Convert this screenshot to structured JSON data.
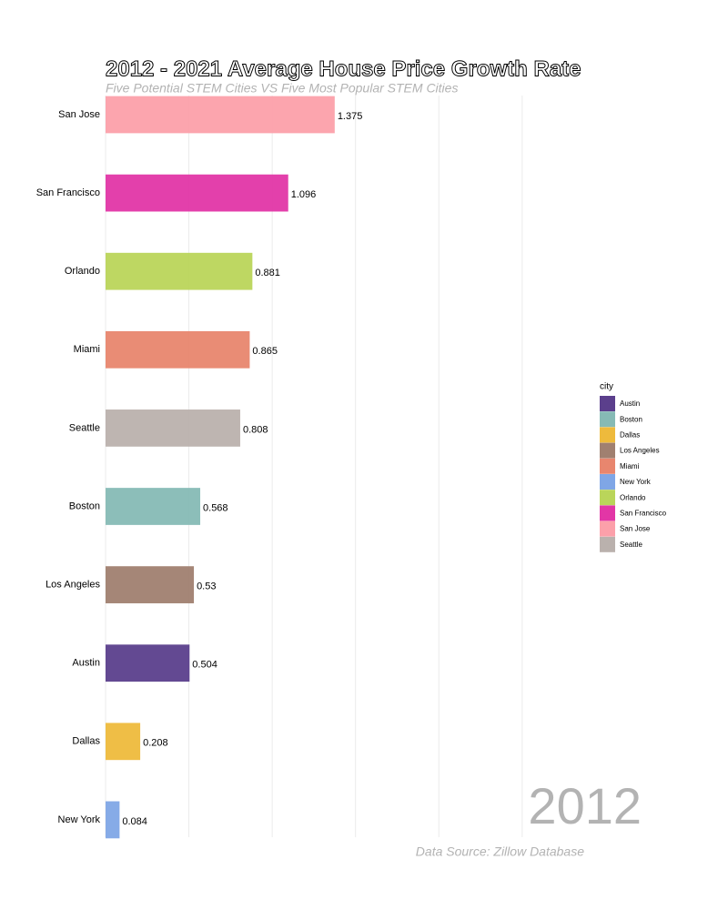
{
  "chart_data": {
    "type": "bar",
    "orientation": "horizontal",
    "title": "2012 - 2021 Average House Price Growth Rate",
    "subtitle": "Five Potential STEM Cities VS Five Most Popular STEM Cities",
    "annotation": "2012",
    "source": "Data Source: Zillow Database",
    "categories": [
      "San Jose",
      "San Francisco",
      "Orlando",
      "Miami",
      "Seattle",
      "Boston",
      "Los Angeles",
      "Austin",
      "Dallas",
      "New York"
    ],
    "values": [
      1.375,
      1.096,
      0.881,
      0.865,
      0.808,
      0.568,
      0.53,
      0.504,
      0.208,
      0.084
    ],
    "colors": [
      "#fca0aa",
      "#e236a6",
      "#bad55a",
      "#e8866e",
      "#bab1ad",
      "#86bab5",
      "#a08070",
      "#5b3f8c",
      "#eeba3c",
      "#7fa6e6"
    ],
    "xlim": [
      0,
      2.55
    ],
    "xticks": [
      0,
      0.5,
      1,
      1.5,
      2,
      2.5
    ],
    "grid": true,
    "legend": {
      "title": "city",
      "position": "right",
      "items": [
        {
          "name": "Austin",
          "color": "#5b3f8c"
        },
        {
          "name": "Boston",
          "color": "#86bab5"
        },
        {
          "name": "Dallas",
          "color": "#eeba3c"
        },
        {
          "name": "Los Angeles",
          "color": "#a08070"
        },
        {
          "name": "Miami",
          "color": "#e8866e"
        },
        {
          "name": "New York",
          "color": "#7fa6e6"
        },
        {
          "name": "Orlando",
          "color": "#bad55a"
        },
        {
          "name": "San Francisco",
          "color": "#e236a6"
        },
        {
          "name": "San Jose",
          "color": "#fca0aa"
        },
        {
          "name": "Seattle",
          "color": "#bab1ad"
        }
      ]
    }
  }
}
